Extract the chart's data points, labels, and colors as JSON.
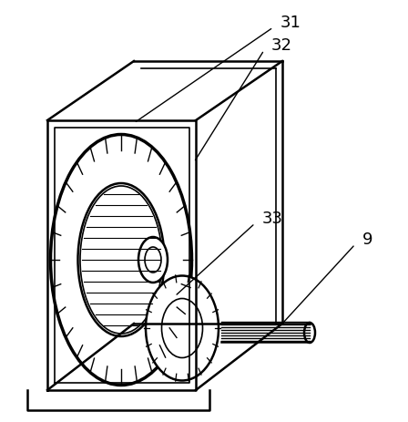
{
  "bg_color": "#ffffff",
  "line_color": "#000000",
  "label_31": "31",
  "label_32": "32",
  "label_33": "33",
  "label_9": "9",
  "label_fontsize": 13,
  "figsize": [
    4.48,
    4.63
  ],
  "dpi": 100
}
